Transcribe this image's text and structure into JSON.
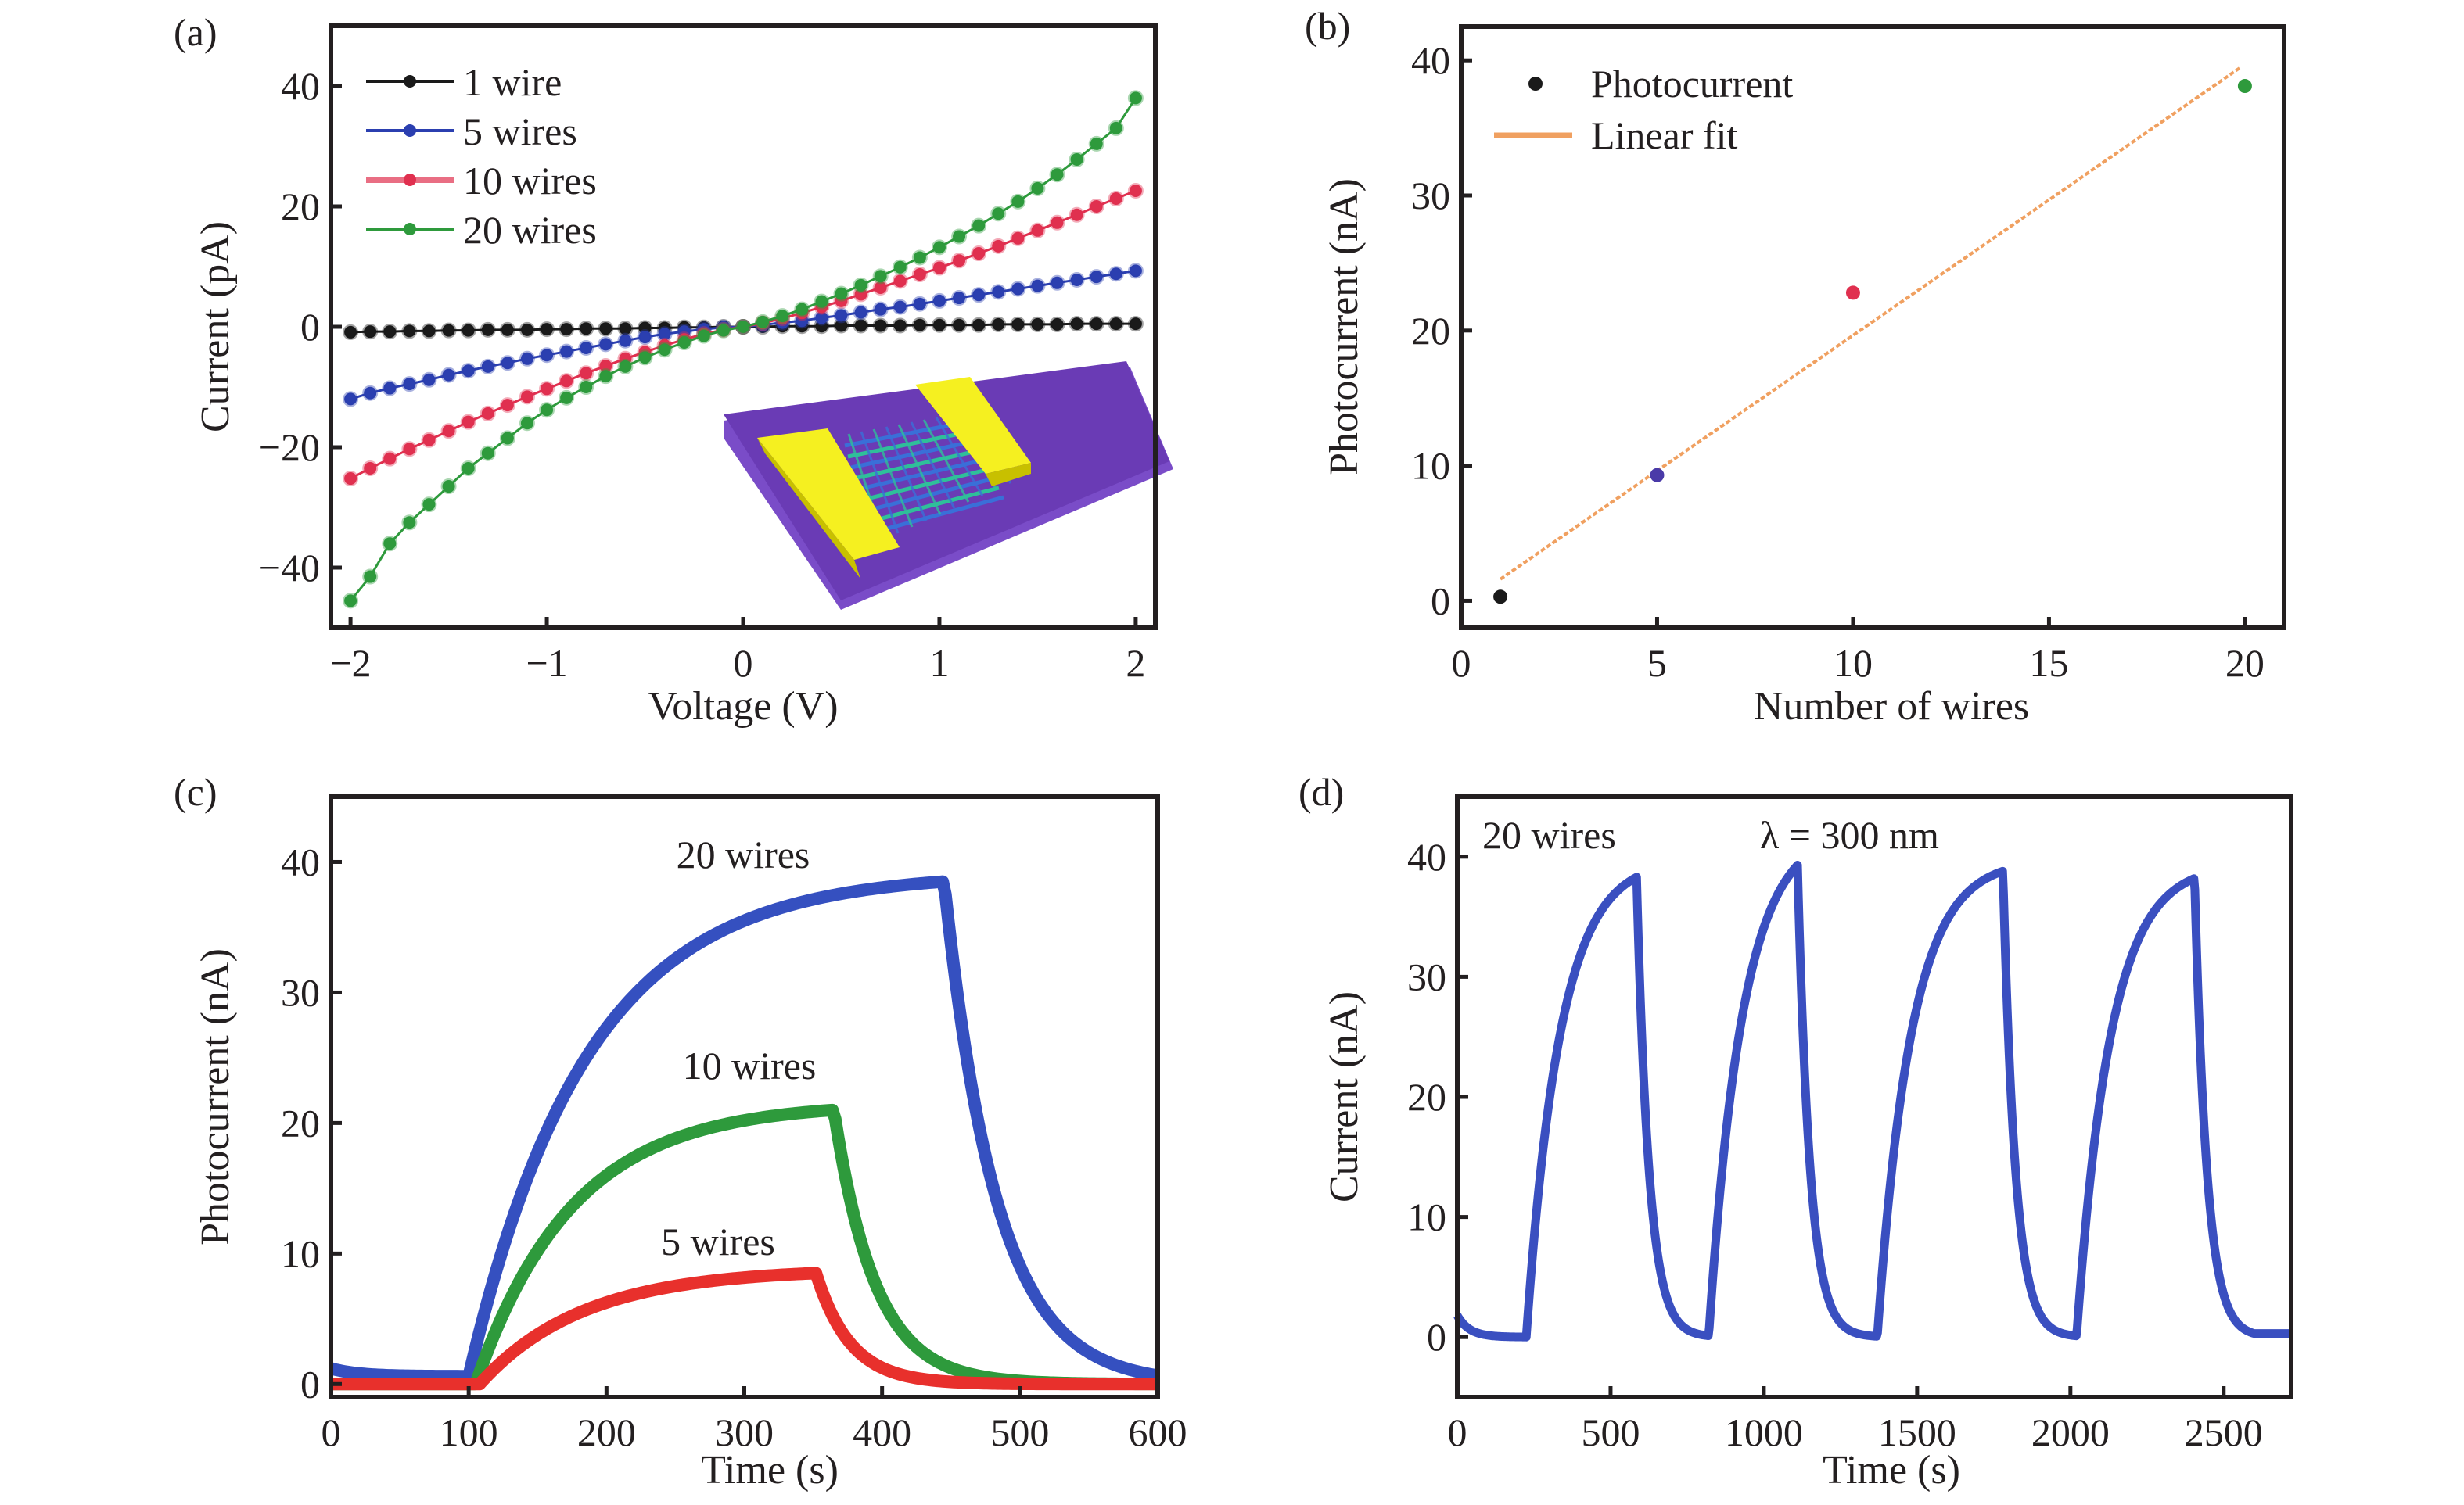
{
  "chart_data": [
    {
      "panel": "(a)",
      "type": "line",
      "xlabel": "Voltage (V)",
      "ylabel": "Current (pA)",
      "xlim": [
        -2.1,
        2.1
      ],
      "ylim": [
        -50,
        50
      ],
      "xticks": [
        -2,
        -1,
        0,
        1,
        2
      ],
      "xtick_labels": [
        "−2",
        "−1",
        "0",
        "1",
        "2"
      ],
      "yticks": [
        -40,
        -20,
        0,
        20,
        40
      ],
      "ytick_labels": [
        "−40",
        "−20",
        "0",
        "20",
        "40"
      ],
      "legend_position": "top-left",
      "markers": true,
      "inset": "device schematic: purple substrate with two yellow electrodes bridged by a nanowire mesh",
      "x": [
        -2.0,
        -1.9,
        -1.8,
        -1.7,
        -1.6,
        -1.5,
        -1.4,
        -1.3,
        -1.2,
        -1.1,
        -1.0,
        -0.9,
        -0.8,
        -0.7,
        -0.6,
        -0.5,
        -0.4,
        -0.3,
        -0.2,
        -0.1,
        0.0,
        0.1,
        0.2,
        0.3,
        0.4,
        0.5,
        0.6,
        0.7,
        0.8,
        0.9,
        1.0,
        1.1,
        1.2,
        1.3,
        1.4,
        1.5,
        1.6,
        1.7,
        1.8,
        1.9,
        2.0
      ],
      "series": [
        {
          "name": "1 wire",
          "color": "#1a1a1a",
          "values": [
            -0.9,
            -0.8,
            -0.8,
            -0.7,
            -0.7,
            -0.6,
            -0.6,
            -0.5,
            -0.5,
            -0.5,
            -0.4,
            -0.4,
            -0.3,
            -0.3,
            -0.3,
            -0.2,
            -0.2,
            -0.1,
            -0.1,
            0.0,
            0.0,
            0.0,
            0.1,
            0.1,
            0.1,
            0.2,
            0.2,
            0.2,
            0.2,
            0.3,
            0.3,
            0.3,
            0.3,
            0.4,
            0.4,
            0.4,
            0.4,
            0.5,
            0.5,
            0.5,
            0.5
          ]
        },
        {
          "name": "5 wires",
          "color": "#2b3fb0",
          "values": [
            -12.0,
            -11.0,
            -10.2,
            -9.5,
            -8.8,
            -8.0,
            -7.3,
            -6.6,
            -6.0,
            -5.3,
            -4.7,
            -4.1,
            -3.5,
            -2.9,
            -2.3,
            -1.7,
            -1.2,
            -0.8,
            -0.4,
            -0.1,
            0.0,
            0.3,
            0.7,
            1.0,
            1.5,
            1.9,
            2.4,
            2.9,
            3.3,
            3.8,
            4.3,
            4.8,
            5.3,
            5.8,
            6.3,
            6.8,
            7.3,
            7.8,
            8.3,
            8.8,
            9.3
          ]
        },
        {
          "name": "10 wires",
          "color": "#e0304f",
          "values": [
            -25.2,
            -23.5,
            -21.9,
            -20.3,
            -18.8,
            -17.3,
            -15.8,
            -14.4,
            -13.0,
            -11.6,
            -10.3,
            -9.0,
            -7.7,
            -6.5,
            -5.3,
            -4.2,
            -3.1,
            -2.1,
            -1.2,
            -0.5,
            0.0,
            0.6,
            1.4,
            2.3,
            3.3,
            4.3,
            5.4,
            6.5,
            7.6,
            8.7,
            9.8,
            11.0,
            12.2,
            13.4,
            14.7,
            16.0,
            17.3,
            18.6,
            20.0,
            21.3,
            22.6
          ]
        },
        {
          "name": "20 wires",
          "color": "#2e9a3c",
          "values": [
            -45.5,
            -41.5,
            -36.0,
            -32.5,
            -29.5,
            -26.5,
            -23.5,
            -21.0,
            -18.5,
            -16.0,
            -13.8,
            -11.8,
            -10.0,
            -8.2,
            -6.6,
            -5.1,
            -3.8,
            -2.6,
            -1.5,
            -0.6,
            0.0,
            0.8,
            1.8,
            2.9,
            4.2,
            5.5,
            6.9,
            8.4,
            9.9,
            11.5,
            13.2,
            15.0,
            16.8,
            18.8,
            20.8,
            23.0,
            25.3,
            27.8,
            30.4,
            33.0,
            38.0
          ]
        }
      ]
    },
    {
      "panel": "(b)",
      "type": "scatter",
      "xlabel": "Number of wires",
      "ylabel": "Photocurrent (nA)",
      "xlim": [
        0,
        21
      ],
      "ylim": [
        -2,
        42.5
      ],
      "xticks": [
        0,
        5,
        10,
        15,
        20
      ],
      "xtick_labels": [
        "0",
        "5",
        "10",
        "15",
        "20"
      ],
      "yticks": [
        0,
        10,
        20,
        30,
        40
      ],
      "ytick_labels": [
        "0",
        "10",
        "20",
        "30",
        "40"
      ],
      "legend_position": "top-left",
      "series": [
        {
          "name": "Photocurrent",
          "x": [
            1,
            5,
            10,
            20
          ],
          "y": [
            0.3,
            9.3,
            22.8,
            38.1
          ],
          "colors": [
            "#1a1a1a",
            "#4a3aa8",
            "#e0304f",
            "#2e9a3c"
          ],
          "legend_color": "#1a1a1a"
        },
        {
          "name": "Linear fit",
          "type": "line",
          "x": [
            1,
            19.9
          ],
          "y": [
            1.6,
            39.5
          ],
          "color": "#f0a060"
        }
      ]
    },
    {
      "panel": "(c)",
      "type": "line",
      "xlabel": "Time (s)",
      "ylabel": "Photocurrent (nA)",
      "xlim": [
        0,
        600
      ],
      "ylim": [
        -1,
        45
      ],
      "xticks": [
        0,
        100,
        200,
        300,
        400,
        500,
        600
      ],
      "xtick_labels": [
        "0",
        "100",
        "200",
        "300",
        "400",
        "500",
        "600"
      ],
      "yticks": [
        0,
        10,
        20,
        30,
        40
      ],
      "ytick_labels": [
        "0",
        "10",
        "20",
        "30",
        "40"
      ],
      "annotations": [
        "20 wires",
        "10 wires",
        "5 wires"
      ],
      "series": [
        {
          "name": "20 wires",
          "color": "#3550c0",
          "on": 100,
          "off": 445,
          "baseline": 0.6,
          "peak": 38.5,
          "rise_tau": 85,
          "decay_tau": 38,
          "x": [
            0,
            100,
            150,
            200,
            250,
            300,
            350,
            400,
            445,
            460,
            500,
            550,
            600
          ],
          "values": [
            0.9,
            0.6,
            16.0,
            26.5,
            32.5,
            35.7,
            37.3,
            37.8,
            38.5,
            22.0,
            8.0,
            3.0,
            1.0
          ]
        },
        {
          "name": "10 wires",
          "color": "#2e9a3c",
          "on": 105,
          "off": 365,
          "baseline": 0.0,
          "peak": 21.0,
          "rise_tau": 70,
          "decay_tau": 30,
          "x": [
            0,
            105,
            150,
            200,
            250,
            300,
            365,
            380,
            400,
            450,
            500,
            600
          ],
          "values": [
            0.0,
            0.0,
            11.0,
            16.5,
            19.0,
            20.3,
            21.0,
            10.0,
            5.5,
            1.5,
            0.4,
            0.0
          ]
        },
        {
          "name": "5 wires",
          "color": "#e8302c",
          "on": 108,
          "off": 352,
          "baseline": 0.0,
          "peak": 8.5,
          "rise_tau": 75,
          "decay_tau": 25,
          "x": [
            0,
            108,
            150,
            200,
            250,
            300,
            352,
            370,
            400,
            450,
            500,
            600
          ],
          "values": [
            0.0,
            0.0,
            3.5,
            6.0,
            7.4,
            8.0,
            8.5,
            4.5,
            2.0,
            0.6,
            0.1,
            0.0
          ]
        }
      ]
    },
    {
      "panel": "(d)",
      "type": "line",
      "xlabel": "Time (s)",
      "ylabel": "Current (nA)",
      "xlim": [
        0,
        2720
      ],
      "ylim": [
        -5,
        45
      ],
      "xticks": [
        0,
        500,
        1000,
        1500,
        2000,
        2500
      ],
      "xtick_labels": [
        "0",
        "500",
        "1000",
        "1500",
        "2000",
        "2500"
      ],
      "yticks": [
        0,
        10,
        20,
        30,
        40
      ],
      "ytick_labels": [
        "0",
        "10",
        "20",
        "30",
        "40"
      ],
      "annotations": [
        "20 wires",
        "λ = 300 nm"
      ],
      "series": [
        {
          "name": "20 wires",
          "color": "#3a4fc0",
          "cycles": [
            {
              "on": 225,
              "off": 585,
              "peak": 38.3
            },
            {
              "on": 820,
              "off": 1110,
              "peak": 39.3
            },
            {
              "on": 1370,
              "off": 1780,
              "peak": 38.8
            },
            {
              "on": 2020,
              "off": 2405,
              "peak": 38.2
            }
          ],
          "baseline": 0.0,
          "initial": 1.8
        }
      ]
    }
  ],
  "panels": {
    "a": {
      "label": "(a)",
      "legend": [
        "1 wire",
        "5 wires",
        "10 wires",
        "20 wires"
      ]
    },
    "b": {
      "label": "(b)",
      "legend": [
        "Photocurrent",
        "Linear fit"
      ]
    },
    "c": {
      "label": "(c)",
      "annotations": [
        "20 wires",
        "10 wires",
        "5 wires"
      ]
    },
    "d": {
      "label": "(d)",
      "annotations": [
        "20 wires",
        "λ = 300 nm"
      ]
    }
  },
  "colors": {
    "axis": "#231f20",
    "substrate": "#6a3bb5",
    "substrate_side": "#7a4cc8",
    "electrode": "#f5f020",
    "electrode_side": "#c8c000",
    "mesh_a": "#2fbf9a",
    "mesh_b": "#3a6fd8"
  }
}
